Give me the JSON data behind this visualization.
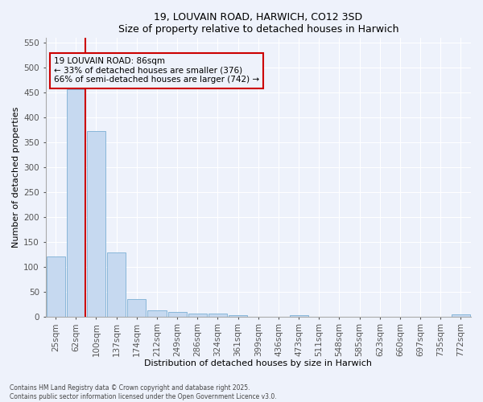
{
  "title1": "19, LOUVAIN ROAD, HARWICH, CO12 3SD",
  "title2": "Size of property relative to detached houses in Harwich",
  "xlabel": "Distribution of detached houses by size in Harwich",
  "ylabel": "Number of detached properties",
  "categories": [
    "25sqm",
    "62sqm",
    "100sqm",
    "137sqm",
    "174sqm",
    "212sqm",
    "249sqm",
    "286sqm",
    "324sqm",
    "361sqm",
    "399sqm",
    "436sqm",
    "473sqm",
    "511sqm",
    "548sqm",
    "585sqm",
    "623sqm",
    "660sqm",
    "697sqm",
    "735sqm",
    "772sqm"
  ],
  "values": [
    120,
    457,
    372,
    128,
    35,
    13,
    9,
    6,
    5,
    2,
    0,
    0,
    3,
    0,
    0,
    0,
    0,
    0,
    0,
    0,
    4
  ],
  "bar_color": "#c6d9f0",
  "bar_edge_color": "#7bafd4",
  "vline_x_index": 1,
  "vline_color": "#cc0000",
  "annotation_text": "19 LOUVAIN ROAD: 86sqm\n← 33% of detached houses are smaller (376)\n66% of semi-detached houses are larger (742) →",
  "annotation_box_color": "#cc0000",
  "footer1": "Contains HM Land Registry data © Crown copyright and database right 2025.",
  "footer2": "Contains public sector information licensed under the Open Government Licence v3.0.",
  "ylim": [
    0,
    560
  ],
  "yticks": [
    0,
    50,
    100,
    150,
    200,
    250,
    300,
    350,
    400,
    450,
    500,
    550
  ],
  "bg_color": "#eef2fb",
  "grid_color": "#ffffff",
  "title_fontsize": 9,
  "axis_label_fontsize": 8,
  "tick_fontsize": 7.5,
  "footer_fontsize": 5.5
}
